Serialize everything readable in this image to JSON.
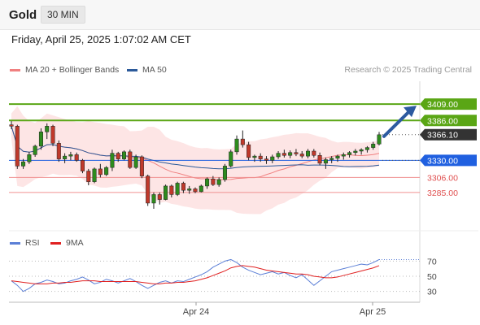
{
  "header": {
    "symbol": "Gold",
    "timeframe": "30 MIN",
    "datetime": "Friday, April 25, 2025 1:07:02 AM CET"
  },
  "legend": {
    "main": [
      {
        "label": "MA 20 + Bollinger Bands",
        "color": "#f08080"
      },
      {
        "label": "MA 50",
        "color": "#2c5a9a"
      }
    ],
    "credit": "Research © 2025 Trading Central",
    "rsi": [
      {
        "label": "RSI",
        "color": "#5b7fd6"
      },
      {
        "label": "9MA",
        "color": "#e02020"
      }
    ]
  },
  "chart_data": [
    {
      "type": "candlestick",
      "ylim": [
        3238,
        3432
      ],
      "x_ticks": [
        "Apr 24",
        "Apr 25"
      ],
      "levels": [
        {
          "label": "3409.00",
          "value": 3409.0,
          "kind": "resistance",
          "color": "#5aa615"
        },
        {
          "label": "3386.00",
          "value": 3386.0,
          "kind": "resistance",
          "color": "#5aa615"
        },
        {
          "label": "3366.10",
          "value": 3366.1,
          "kind": "last",
          "color": "#333333"
        },
        {
          "label": "3330.00",
          "value": 3330.0,
          "kind": "pivot",
          "color": "#2060e0"
        },
        {
          "label": "3306.00",
          "value": 3306.0,
          "kind": "support",
          "color": "#e05050"
        },
        {
          "label": "3285.00",
          "value": 3285.0,
          "kind": "support",
          "color": "#e05050"
        }
      ],
      "candles": [
        [
          3380,
          3385,
          3374,
          3378
        ],
        [
          3378,
          3380,
          3318,
          3322
        ],
        [
          3322,
          3332,
          3318,
          3328
        ],
        [
          3328,
          3342,
          3325,
          3338
        ],
        [
          3338,
          3352,
          3335,
          3350
        ],
        [
          3350,
          3375,
          3345,
          3370
        ],
        [
          3370,
          3382,
          3360,
          3378
        ],
        [
          3378,
          3380,
          3350,
          3354
        ],
        [
          3354,
          3358,
          3328,
          3332
        ],
        [
          3332,
          3340,
          3326,
          3336
        ],
        [
          3336,
          3342,
          3330,
          3338
        ],
        [
          3338,
          3341,
          3328,
          3330
        ],
        [
          3330,
          3332,
          3312,
          3315
        ],
        [
          3315,
          3318,
          3295,
          3300
        ],
        [
          3300,
          3320,
          3298,
          3318
        ],
        [
          3318,
          3325,
          3306,
          3310
        ],
        [
          3310,
          3322,
          3308,
          3320
        ],
        [
          3320,
          3345,
          3315,
          3340
        ],
        [
          3340,
          3342,
          3328,
          3332
        ],
        [
          3332,
          3344,
          3330,
          3342
        ],
        [
          3342,
          3345,
          3318,
          3320
        ],
        [
          3320,
          3338,
          3318,
          3335
        ],
        [
          3335,
          3337,
          3305,
          3308
        ],
        [
          3308,
          3310,
          3266,
          3270
        ],
        [
          3270,
          3285,
          3262,
          3282
        ],
        [
          3282,
          3285,
          3268,
          3275
        ],
        [
          3275,
          3296,
          3274,
          3294
        ],
        [
          3294,
          3296,
          3278,
          3282
        ],
        [
          3282,
          3300,
          3280,
          3298
        ],
        [
          3298,
          3300,
          3284,
          3288
        ],
        [
          3288,
          3294,
          3283,
          3290
        ],
        [
          3290,
          3292,
          3284,
          3286
        ],
        [
          3286,
          3296,
          3285,
          3294
        ],
        [
          3294,
          3306,
          3290,
          3304
        ],
        [
          3304,
          3308,
          3294,
          3296
        ],
        [
          3296,
          3306,
          3293,
          3303
        ],
        [
          3303,
          3325,
          3300,
          3322
        ],
        [
          3322,
          3345,
          3320,
          3342
        ],
        [
          3342,
          3365,
          3338,
          3360
        ],
        [
          3360,
          3372,
          3348,
          3352
        ],
        [
          3352,
          3356,
          3330,
          3334
        ],
        [
          3334,
          3338,
          3328,
          3336
        ],
        [
          3336,
          3340,
          3328,
          3332
        ],
        [
          3332,
          3336,
          3325,
          3330
        ],
        [
          3330,
          3338,
          3326,
          3335
        ],
        [
          3335,
          3343,
          3332,
          3340
        ],
        [
          3340,
          3345,
          3334,
          3337
        ],
        [
          3337,
          3344,
          3333,
          3341
        ],
        [
          3341,
          3346,
          3336,
          3339
        ],
        [
          3339,
          3343,
          3333,
          3336
        ],
        [
          3336,
          3346,
          3333,
          3343
        ],
        [
          3343,
          3346,
          3334,
          3337
        ],
        [
          3337,
          3341,
          3323,
          3326
        ],
        [
          3326,
          3334,
          3318,
          3331
        ],
        [
          3331,
          3336,
          3326,
          3333
        ],
        [
          3333,
          3338,
          3328,
          3336
        ],
        [
          3336,
          3341,
          3331,
          3338
        ],
        [
          3338,
          3343,
          3334,
          3341
        ],
        [
          3341,
          3346,
          3337,
          3343
        ],
        [
          3343,
          3347,
          3338,
          3345
        ],
        [
          3345,
          3350,
          3341,
          3348
        ],
        [
          3348,
          3356,
          3345,
          3353
        ],
        [
          3353,
          3370,
          3351,
          3366
        ]
      ]
    },
    {
      "type": "line",
      "title": "RSI",
      "ylim": [
        20,
        80
      ],
      "y_ticks": [
        70,
        50,
        30
      ],
      "series": [
        {
          "name": "RSI",
          "values": [
            44,
            38,
            30,
            34,
            40,
            42,
            45,
            43,
            40,
            41,
            44,
            46,
            49,
            45,
            40,
            42,
            46,
            44,
            41,
            44,
            47,
            43,
            38,
            34,
            38,
            42,
            44,
            41,
            44,
            43,
            46,
            49,
            52,
            56,
            62,
            66,
            70,
            72,
            68,
            62,
            58,
            55,
            52,
            54,
            56,
            53,
            55,
            51,
            48,
            52,
            45,
            38,
            44,
            50,
            56,
            58,
            60,
            62,
            64,
            66,
            65,
            68,
            72
          ]
        },
        {
          "name": "9MA",
          "values": [
            44,
            43,
            42,
            41,
            40,
            40,
            40,
            41,
            41,
            42,
            42,
            43,
            44,
            44,
            44,
            43,
            43,
            43,
            43,
            43,
            43,
            43,
            42,
            41,
            40,
            40,
            41,
            41,
            42,
            42,
            43,
            44,
            46,
            48,
            51,
            54,
            57,
            61,
            63,
            64,
            63,
            62,
            60,
            58,
            57,
            56,
            55,
            54,
            53,
            53,
            52,
            50,
            49,
            48,
            48,
            49,
            51,
            53,
            55,
            57,
            59,
            61,
            64
          ]
        }
      ]
    }
  ]
}
